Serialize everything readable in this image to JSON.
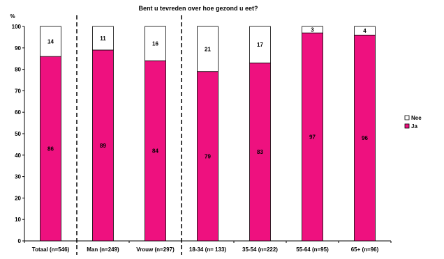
{
  "chart_data": {
    "type": "bar",
    "stacked": true,
    "title": "Bent u tevreden over hoe gezond u eet?",
    "ylabel": "%",
    "ylim": [
      0,
      100
    ],
    "yticks": [
      0,
      10,
      20,
      30,
      40,
      50,
      60,
      70,
      80,
      90,
      100
    ],
    "categories": [
      "Totaal (n=546)",
      "Man (n=249)",
      "Vrouw (n=297)",
      "18-34 (n= 133)",
      "35-54 (n=222)",
      "55-64 (n=95)",
      "65+ (n=96)"
    ],
    "series": [
      {
        "name": "Ja",
        "color": "#ee117f",
        "values": [
          86,
          89,
          84,
          79,
          83,
          97,
          96
        ]
      },
      {
        "name": "Nee",
        "color": "#ffffff",
        "values": [
          14,
          11,
          16,
          21,
          17,
          3,
          4
        ]
      }
    ],
    "separators_after_category": [
      0,
      2
    ],
    "legend": {
      "position": "right",
      "order": [
        "Nee",
        "Ja"
      ]
    },
    "grid": false
  }
}
